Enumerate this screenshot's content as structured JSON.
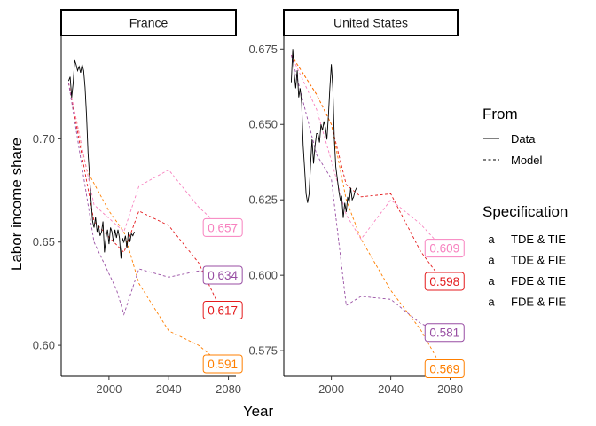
{
  "chart_data": {
    "type": "line",
    "xlabel": "Year",
    "ylabel": "Labor income share",
    "legend": {
      "position": "right",
      "linetype_title": "From",
      "linetype_items": [
        {
          "label": "Data",
          "dash": "solid"
        },
        {
          "label": "Model",
          "dash": "dashed"
        }
      ],
      "color_title": "Specification",
      "color_items": [
        {
          "label": "TDE & TIE",
          "color": "#e41a1c"
        },
        {
          "label": "TDE & FIE",
          "color": "#ff7f00"
        },
        {
          "label": "FDE & TIE",
          "color": "#f781bf"
        },
        {
          "label": "FDE & FIE",
          "color": "#984ea3"
        }
      ]
    },
    "panels": [
      {
        "title": "France",
        "xlim": [
          1968,
          2085
        ],
        "ylim": [
          0.585,
          0.75
        ],
        "xticks": [
          2000,
          2040,
          2080
        ],
        "yticks": [
          0.6,
          0.65,
          0.7
        ],
        "ytick_labels": [
          "0.60",
          "0.65",
          "0.70"
        ],
        "data_line": {
          "x": [
            1973,
            1974,
            1975,
            1976,
            1977,
            1978,
            1979,
            1980,
            1981,
            1982,
            1983,
            1984,
            1985,
            1986,
            1987,
            1988,
            1989,
            1990,
            1991,
            1992,
            1993,
            1994,
            1995,
            1996,
            1997,
            1998,
            1999,
            2000,
            2001,
            2002,
            2003,
            2004,
            2005,
            2006,
            2007,
            2008,
            2009,
            2010,
            2011,
            2012,
            2013,
            2014,
            2015,
            2016,
            2017
          ],
          "y": [
            0.728,
            0.73,
            0.72,
            0.727,
            0.738,
            0.736,
            0.733,
            0.735,
            0.732,
            0.736,
            0.733,
            0.725,
            0.711,
            0.693,
            0.682,
            0.67,
            0.66,
            0.657,
            0.662,
            0.655,
            0.658,
            0.653,
            0.655,
            0.66,
            0.645,
            0.652,
            0.656,
            0.649,
            0.657,
            0.655,
            0.65,
            0.656,
            0.652,
            0.656,
            0.652,
            0.642,
            0.652,
            0.65,
            0.653,
            0.647,
            0.655,
            0.65,
            0.654,
            0.653,
            0.655
          ]
        },
        "series": [
          {
            "name": "TDE & TIE",
            "x": [
              1973,
              1990,
              2010,
              2020,
              2040,
              2060,
              2075
            ],
            "y": [
              0.727,
              0.66,
              0.645,
              0.665,
              0.658,
              0.64,
              0.617
            ],
            "end_label": "0.617"
          },
          {
            "name": "TDE & FIE",
            "x": [
              1973,
              1985,
              2000,
              2010,
              2020,
              2040,
              2060,
              2075
            ],
            "y": [
              0.727,
              0.685,
              0.665,
              0.655,
              0.63,
              0.607,
              0.6,
              0.591
            ],
            "end_label": "0.591"
          },
          {
            "name": "FDE & TIE",
            "x": [
              1973,
              1990,
              2010,
              2020,
              2040,
              2060,
              2075
            ],
            "y": [
              0.727,
              0.668,
              0.655,
              0.677,
              0.685,
              0.667,
              0.657
            ],
            "end_label": "0.657"
          },
          {
            "name": "FDE & FIE",
            "x": [
              1973,
              1990,
              2005,
              2010,
              2020,
              2040,
              2060,
              2075
            ],
            "y": [
              0.727,
              0.65,
              0.627,
              0.615,
              0.637,
              0.633,
              0.636,
              0.634
            ],
            "end_label": "0.634"
          }
        ]
      },
      {
        "title": "United States",
        "xlim": [
          1968,
          2085
        ],
        "ylim": [
          0.5665,
          0.6795
        ],
        "xticks": [
          2000,
          2040,
          2080
        ],
        "yticks": [
          0.575,
          0.6,
          0.625,
          0.65,
          0.675
        ],
        "ytick_labels": [
          "0.575",
          "0.600",
          "0.625",
          "0.650",
          "0.675"
        ],
        "data_line": {
          "x": [
            1973,
            1974,
            1975,
            1976,
            1977,
            1978,
            1979,
            1980,
            1981,
            1982,
            1983,
            1984,
            1985,
            1986,
            1987,
            1988,
            1989,
            1990,
            1991,
            1992,
            1993,
            1994,
            1995,
            1996,
            1997,
            1998,
            1999,
            2000,
            2001,
            2002,
            2003,
            2004,
            2005,
            2006,
            2007,
            2008,
            2009,
            2010,
            2011,
            2012,
            2013,
            2014,
            2015,
            2016,
            2017
          ],
          "y": [
            0.664,
            0.675,
            0.667,
            0.662,
            0.668,
            0.659,
            0.662,
            0.657,
            0.643,
            0.635,
            0.627,
            0.624,
            0.627,
            0.637,
            0.645,
            0.637,
            0.643,
            0.647,
            0.647,
            0.644,
            0.65,
            0.648,
            0.651,
            0.649,
            0.645,
            0.653,
            0.662,
            0.67,
            0.662,
            0.645,
            0.636,
            0.632,
            0.628,
            0.625,
            0.626,
            0.619,
            0.624,
            0.621,
            0.626,
            0.624,
            0.629,
            0.625,
            0.626,
            0.628,
            0.629
          ]
        },
        "series": [
          {
            "name": "TDE & TIE",
            "x": [
              1973,
              1990,
              2000,
              2010,
              2020,
              2040,
              2060,
              2075
            ],
            "y": [
              0.673,
              0.66,
              0.65,
              0.63,
              0.626,
              0.627,
              0.608,
              0.598
            ],
            "end_label": "0.598"
          },
          {
            "name": "TDE & FIE",
            "x": [
              1973,
              1990,
              2000,
              2010,
              2020,
              2040,
              2060,
              2075
            ],
            "y": [
              0.673,
              0.66,
              0.65,
              0.625,
              0.612,
              0.595,
              0.582,
              0.569
            ],
            "end_label": "0.569"
          },
          {
            "name": "FDE & TIE",
            "x": [
              1973,
              1990,
              2000,
              2010,
              2020,
              2040,
              2060,
              2075
            ],
            "y": [
              0.673,
              0.655,
              0.638,
              0.62,
              0.612,
              0.625,
              0.617,
              0.609
            ],
            "end_label": "0.609"
          },
          {
            "name": "FDE & FIE",
            "x": [
              1973,
              1990,
              2000,
              2010,
              2020,
              2040,
              2060,
              2075
            ],
            "y": [
              0.673,
              0.64,
              0.632,
              0.59,
              0.593,
              0.592,
              0.584,
              0.581
            ],
            "end_label": "0.581"
          }
        ]
      }
    ]
  }
}
